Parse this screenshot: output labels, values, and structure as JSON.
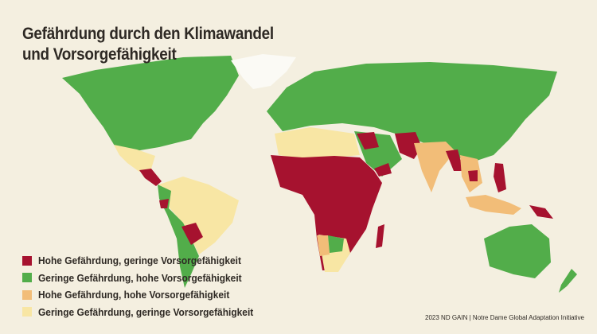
{
  "title_line1": "Gefährdung durch den Klimawandel",
  "title_line2": "und Vorsorgefähigkeit",
  "legend": [
    {
      "label": "Hohe Gefährdung, geringe Vorsorgefähigkeit",
      "color": "#a6122f"
    },
    {
      "label": "Geringe Gefährdung, hohe Vorsorgefähigkeit",
      "color": "#52ad4a"
    },
    {
      "label": "Hohe Gefährdung, hohe Vorsorgefähigkeit",
      "color": "#f2bd78"
    },
    {
      "label": "Geringe Gefährdung, geringe Vorsorgefähigkeit",
      "color": "#f8e6a4"
    }
  ],
  "source": "2023 ND GAIN  | Notre Dame Global Adaptation Initiative",
  "colors": {
    "background": "#f4efe0",
    "no_data": "#fbfaf5"
  }
}
